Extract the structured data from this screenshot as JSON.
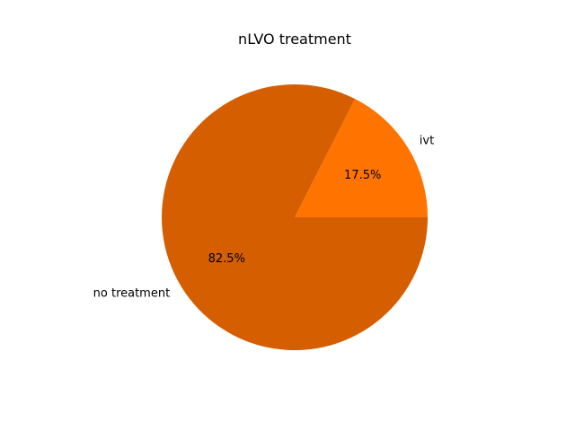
{
  "chart_data": {
    "type": "pie",
    "title": "nLVO treatment",
    "slices": [
      {
        "label": "ivt",
        "value": 17.5,
        "pct_label": "17.5%",
        "color": "#ff7400"
      },
      {
        "label": "no treatment",
        "value": 82.5,
        "pct_label": "82.5%",
        "color": "#d55e00"
      }
    ],
    "start_angle_deg": 0,
    "legend": "none"
  }
}
